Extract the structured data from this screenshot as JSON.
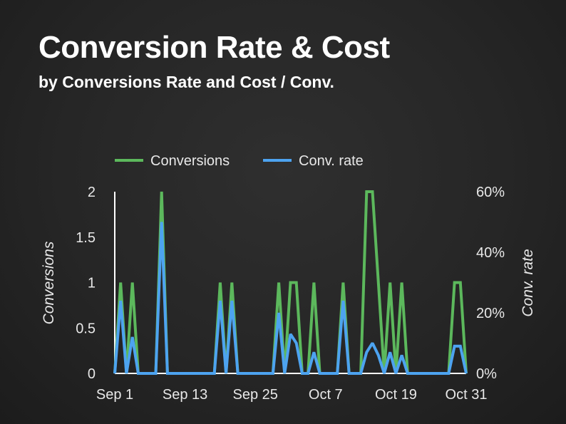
{
  "title": "Conversion Rate & Cost",
  "subtitle": "by Conversions Rate and Cost / Conv.",
  "colors": {
    "conversions": "#5cb85c",
    "conv_rate": "#4da3f0",
    "axis": "#ffffff",
    "text": "#e8e8e8"
  },
  "chart_data": {
    "type": "line",
    "title": "Conversion Rate & Cost",
    "subtitle": "by Conversions Rate and Cost / Conv.",
    "xlabel": "",
    "ylabel": "Conversions",
    "y2label": "Conv. rate",
    "legend": "top",
    "x": [
      "Sep 1",
      "Sep 2",
      "Sep 3",
      "Sep 4",
      "Sep 5",
      "Sep 6",
      "Sep 7",
      "Sep 8",
      "Sep 9",
      "Sep 10",
      "Sep 11",
      "Sep 12",
      "Sep 13",
      "Sep 14",
      "Sep 15",
      "Sep 16",
      "Sep 17",
      "Sep 18",
      "Sep 19",
      "Sep 20",
      "Sep 21",
      "Sep 22",
      "Sep 23",
      "Sep 24",
      "Sep 25",
      "Sep 26",
      "Sep 27",
      "Sep 28",
      "Sep 29",
      "Sep 30",
      "Oct 1",
      "Oct 2",
      "Oct 3",
      "Oct 4",
      "Oct 5",
      "Oct 6",
      "Oct 7",
      "Oct 8",
      "Oct 9",
      "Oct 10",
      "Oct 11",
      "Oct 12",
      "Oct 13",
      "Oct 14",
      "Oct 15",
      "Oct 16",
      "Oct 17",
      "Oct 18",
      "Oct 19",
      "Oct 20",
      "Oct 21",
      "Oct 22",
      "Oct 23",
      "Oct 24",
      "Oct 25",
      "Oct 26",
      "Oct 27",
      "Oct 28",
      "Oct 29",
      "Oct 30",
      "Oct 31"
    ],
    "xticks": [
      "Sep 1",
      "Sep 13",
      "Sep 25",
      "Oct 7",
      "Oct 19",
      "Oct 31"
    ],
    "ylim": [
      0,
      2
    ],
    "yticks": [
      "0",
      "0.5",
      "1",
      "1.5",
      "2"
    ],
    "y2lim": [
      0,
      60
    ],
    "y2ticks": [
      "0%",
      "20%",
      "40%",
      "60%"
    ],
    "series": [
      {
        "name": "Conversions",
        "axis": "left",
        "values": [
          0,
          1,
          0,
          1,
          0,
          0,
          0,
          0,
          2,
          0,
          0,
          0,
          0,
          0,
          0,
          0,
          0,
          0,
          1,
          0,
          1,
          0,
          0,
          0,
          0,
          0,
          0,
          0,
          1,
          0,
          1,
          1,
          0,
          0,
          1,
          0,
          0,
          0,
          0,
          1,
          0,
          0,
          0,
          2,
          2,
          1,
          0,
          1,
          0,
          1,
          0,
          0,
          0,
          0,
          0,
          0,
          0,
          0,
          1,
          1,
          0
        ]
      },
      {
        "name": "Conv. rate",
        "axis": "right",
        "values": [
          0,
          24,
          0,
          12,
          0,
          0,
          0,
          0,
          50,
          0,
          0,
          0,
          0,
          0,
          0,
          0,
          0,
          0,
          24,
          0,
          24,
          0,
          0,
          0,
          0,
          0,
          0,
          0,
          20,
          0,
          13,
          10,
          0,
          0,
          7,
          0,
          0,
          0,
          0,
          24,
          0,
          0,
          0,
          7,
          10,
          6,
          0,
          7,
          0,
          6,
          0,
          0,
          0,
          0,
          0,
          0,
          0,
          0,
          9,
          9,
          0
        ]
      }
    ]
  }
}
